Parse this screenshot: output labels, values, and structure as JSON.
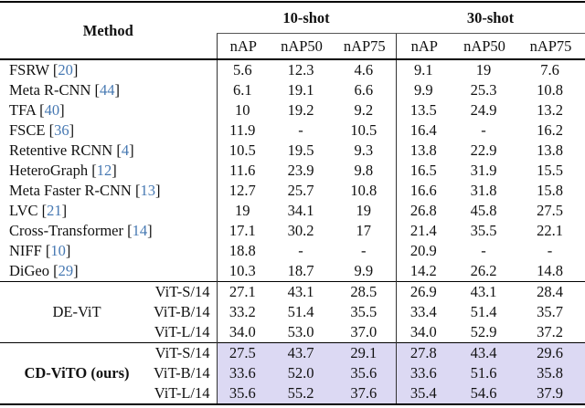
{
  "table": {
    "method_header": "Method",
    "shot10_header": "10-shot",
    "shot30_header": "30-shot",
    "metrics": [
      "nAP",
      "nAP50",
      "nAP75"
    ],
    "bracket_open": "[",
    "bracket_close": "]",
    "rows": [
      {
        "name": "FSRW",
        "ref": "20",
        "shot10": [
          "5.6",
          "12.3",
          "4.6"
        ],
        "shot30": [
          "9.1",
          "19",
          "7.6"
        ]
      },
      {
        "name": "Meta R-CNN",
        "ref": "44",
        "shot10": [
          "6.1",
          "19.1",
          "6.6"
        ],
        "shot30": [
          "9.9",
          "25.3",
          "10.8"
        ]
      },
      {
        "name": "TFA",
        "ref": "40",
        "shot10": [
          "10",
          "19.2",
          "9.2"
        ],
        "shot30": [
          "13.5",
          "24.9",
          "13.2"
        ]
      },
      {
        "name": "FSCE",
        "ref": "36",
        "shot10": [
          "11.9",
          "-",
          "10.5"
        ],
        "shot30": [
          "16.4",
          "-",
          "16.2"
        ]
      },
      {
        "name": "Retentive RCNN",
        "ref": "4",
        "shot10": [
          "10.5",
          "19.5",
          "9.3"
        ],
        "shot30": [
          "13.8",
          "22.9",
          "13.8"
        ]
      },
      {
        "name": "HeteroGraph",
        "ref": "12",
        "shot10": [
          "11.6",
          "23.9",
          "9.8"
        ],
        "shot30": [
          "16.5",
          "31.9",
          "15.5"
        ]
      },
      {
        "name": "Meta Faster R-CNN",
        "ref": "13",
        "shot10": [
          "12.7",
          "25.7",
          "10.8"
        ],
        "shot30": [
          "16.6",
          "31.8",
          "15.8"
        ]
      },
      {
        "name": "LVC",
        "ref": "21",
        "shot10": [
          "19",
          "34.1",
          "19"
        ],
        "shot30": [
          "26.8",
          "45.8",
          "27.5"
        ]
      },
      {
        "name": "Cross-Transformer",
        "ref": "14",
        "shot10": [
          "17.1",
          "30.2",
          "17"
        ],
        "shot30": [
          "21.4",
          "35.5",
          "22.1"
        ]
      },
      {
        "name": "NIFF",
        "ref": "10",
        "shot10": [
          "18.8",
          "-",
          "-"
        ],
        "shot30": [
          "20.9",
          "-",
          "-"
        ]
      },
      {
        "name": "DiGeo",
        "ref": "29",
        "shot10": [
          "10.3",
          "18.7",
          "9.9"
        ],
        "shot30": [
          "14.2",
          "26.2",
          "14.8"
        ]
      }
    ],
    "groups": [
      {
        "label": "DE-ViT",
        "bold": false,
        "highlight": false,
        "section_name": "de-vit-section",
        "rows": [
          {
            "backbone": "ViT-S/14",
            "shot10": [
              "27.1",
              "43.1",
              "28.5"
            ],
            "shot30": [
              "26.9",
              "43.1",
              "28.4"
            ]
          },
          {
            "backbone": "ViT-B/14",
            "shot10": [
              "33.2",
              "51.4",
              "35.5"
            ],
            "shot30": [
              "33.4",
              "51.4",
              "35.7"
            ]
          },
          {
            "backbone": "ViT-L/14",
            "shot10": [
              "34.0",
              "53.0",
              "37.0"
            ],
            "shot30": [
              "34.0",
              "52.9",
              "37.2"
            ]
          }
        ]
      },
      {
        "label": "CD-ViTO (ours)",
        "bold": true,
        "highlight": true,
        "section_name": "cd-vito-section",
        "rows": [
          {
            "backbone": "ViT-S/14",
            "shot10": [
              "27.5",
              "43.7",
              "29.1"
            ],
            "shot30": [
              "27.8",
              "43.4",
              "29.6"
            ]
          },
          {
            "backbone": "ViT-B/14",
            "shot10": [
              "33.6",
              "52.0",
              "35.6"
            ],
            "shot30": [
              "33.6",
              "51.6",
              "35.8"
            ]
          },
          {
            "backbone": "ViT-L/14",
            "shot10": [
              "35.6",
              "55.2",
              "37.6"
            ],
            "shot30": [
              "35.4",
              "54.6",
              "37.9"
            ]
          }
        ]
      }
    ]
  },
  "colors": {
    "highlight": "#dcd9f3",
    "citation": "#4678b2",
    "rule": "#000000"
  }
}
